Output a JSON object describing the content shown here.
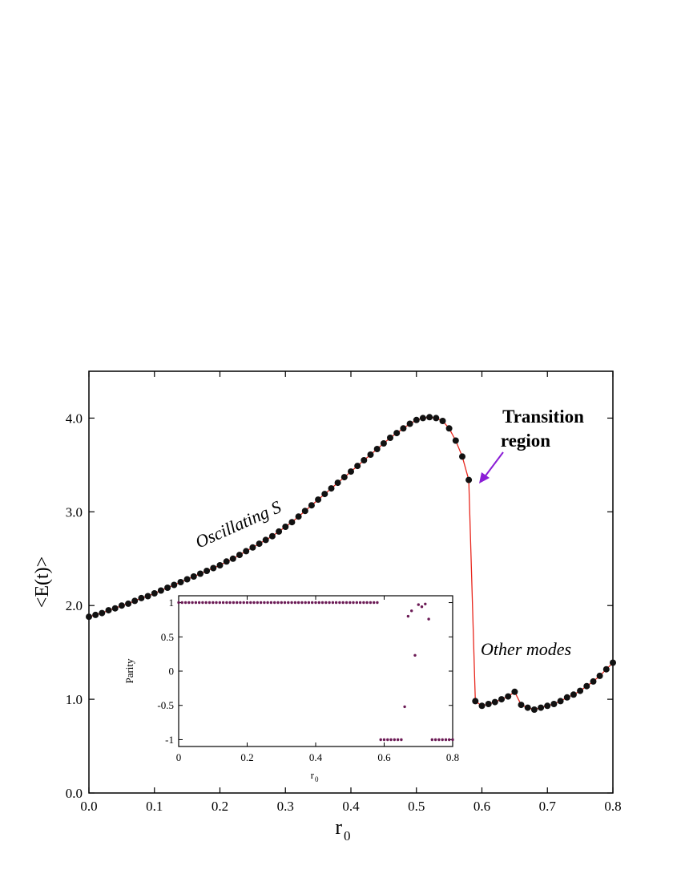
{
  "chart_data": [
    {
      "type": "line",
      "xlabel": "r",
      "xlabel_sub": "0",
      "ylabel": "<E(t)>",
      "xlim": [
        0.0,
        0.8
      ],
      "ylim": [
        0.0,
        4.5
      ],
      "xticks": [
        "0.0",
        "0.1",
        "0.2",
        "0.3",
        "0.4",
        "0.5",
        "0.6",
        "0.7",
        "0.8"
      ],
      "yticks": [
        "0.0",
        "1.0",
        "2.0",
        "3.0",
        "4.0"
      ],
      "xtick_values": [
        0.0,
        0.1,
        0.2,
        0.3,
        0.4,
        0.5,
        0.6,
        0.7,
        0.8
      ],
      "ytick_values": [
        0.0,
        1.0,
        2.0,
        3.0,
        4.0
      ],
      "grid": false,
      "line_color": "#e8261c",
      "marker_color": "#111111",
      "annotations": {
        "oscillating": "Oscillating S",
        "transition_line1": "Transition",
        "transition_line2": "region",
        "other_modes": "Other modes",
        "arrow_color": "#8b1ed6"
      },
      "series": [
        {
          "x": [
            0.0,
            0.01,
            0.02,
            0.03,
            0.04,
            0.05,
            0.06,
            0.07,
            0.08,
            0.09,
            0.1,
            0.11,
            0.12,
            0.13,
            0.14,
            0.15,
            0.16,
            0.17,
            0.18,
            0.19,
            0.2,
            0.21,
            0.22,
            0.23,
            0.24,
            0.25,
            0.26,
            0.27,
            0.28,
            0.29,
            0.3,
            0.31,
            0.32,
            0.33,
            0.34,
            0.35,
            0.36,
            0.37,
            0.38,
            0.39,
            0.4,
            0.41,
            0.42,
            0.43,
            0.44,
            0.45,
            0.46,
            0.47,
            0.48,
            0.49,
            0.5,
            0.51,
            0.52,
            0.53,
            0.54,
            0.55,
            0.56,
            0.57,
            0.58,
            0.59,
            0.6,
            0.61,
            0.62,
            0.63,
            0.64,
            0.65,
            0.66,
            0.67,
            0.68,
            0.69,
            0.7,
            0.71,
            0.72,
            0.73,
            0.74,
            0.75,
            0.76,
            0.77,
            0.78,
            0.79,
            0.8
          ],
          "y": [
            1.88,
            1.9,
            1.92,
            1.95,
            1.97,
            2.0,
            2.02,
            2.05,
            2.08,
            2.1,
            2.13,
            2.16,
            2.19,
            2.22,
            2.25,
            2.28,
            2.31,
            2.34,
            2.37,
            2.4,
            2.43,
            2.47,
            2.5,
            2.54,
            2.58,
            2.62,
            2.66,
            2.7,
            2.74,
            2.79,
            2.84,
            2.89,
            2.95,
            3.01,
            3.07,
            3.13,
            3.19,
            3.25,
            3.31,
            3.37,
            3.43,
            3.49,
            3.55,
            3.61,
            3.67,
            3.73,
            3.79,
            3.84,
            3.89,
            3.94,
            3.98,
            4.0,
            4.01,
            4.0,
            3.97,
            3.89,
            3.76,
            3.59,
            3.34,
            0.98,
            0.93,
            0.95,
            0.97,
            1.0,
            1.03,
            1.08,
            0.94,
            0.91,
            0.89,
            0.91,
            0.93,
            0.95,
            0.98,
            1.02,
            1.05,
            1.09,
            1.14,
            1.19,
            1.25,
            1.32,
            1.39
          ]
        }
      ]
    },
    {
      "type": "scatter",
      "xlabel": "r",
      "xlabel_sub": "0",
      "ylabel": "Parity",
      "xlim": [
        0.0,
        0.8
      ],
      "ylim": [
        -1.1,
        1.1
      ],
      "xticks": [
        "0",
        "0.2",
        "0.4",
        "0.6",
        "0.8"
      ],
      "yticks": [
        "-1",
        "-0.5",
        "0",
        "0.5",
        "1"
      ],
      "xtick_values": [
        0.0,
        0.2,
        0.4,
        0.6,
        0.8
      ],
      "ytick_values": [
        -1.0,
        -0.5,
        0.0,
        0.5,
        1.0
      ],
      "grid": false,
      "marker_color": "#6b1a55",
      "series": [
        {
          "x": [
            0.0,
            0.01,
            0.02,
            0.03,
            0.04,
            0.05,
            0.06,
            0.07,
            0.08,
            0.09,
            0.1,
            0.11,
            0.12,
            0.13,
            0.14,
            0.15,
            0.16,
            0.17,
            0.18,
            0.19,
            0.2,
            0.21,
            0.22,
            0.23,
            0.24,
            0.25,
            0.26,
            0.27,
            0.28,
            0.29,
            0.3,
            0.31,
            0.32,
            0.33,
            0.34,
            0.35,
            0.36,
            0.37,
            0.38,
            0.39,
            0.4,
            0.41,
            0.42,
            0.43,
            0.44,
            0.45,
            0.46,
            0.47,
            0.48,
            0.49,
            0.5,
            0.51,
            0.52,
            0.53,
            0.54,
            0.55,
            0.56,
            0.57,
            0.58,
            0.59,
            0.6,
            0.61,
            0.62,
            0.63,
            0.64,
            0.65,
            0.66,
            0.67,
            0.68,
            0.69,
            0.7,
            0.71,
            0.72,
            0.73,
            0.74,
            0.75,
            0.76,
            0.77,
            0.78,
            0.79,
            0.8
          ],
          "y": [
            1,
            1,
            1,
            1,
            1,
            1,
            1,
            1,
            1,
            1,
            1,
            1,
            1,
            1,
            1,
            1,
            1,
            1,
            1,
            1,
            1,
            1,
            1,
            1,
            1,
            1,
            1,
            1,
            1,
            1,
            1,
            1,
            1,
            1,
            1,
            1,
            1,
            1,
            1,
            1,
            1,
            1,
            1,
            1,
            1,
            1,
            1,
            1,
            1,
            1,
            1,
            1,
            1,
            1,
            1,
            1,
            1,
            1,
            1,
            -1,
            -1,
            -1,
            -1,
            -1,
            -1,
            -1,
            -0.52,
            0.8,
            0.88,
            0.23,
            0.97,
            0.94,
            0.98,
            0.76,
            -1,
            -1,
            -1,
            -1,
            -1,
            -1,
            -1
          ]
        }
      ]
    }
  ]
}
